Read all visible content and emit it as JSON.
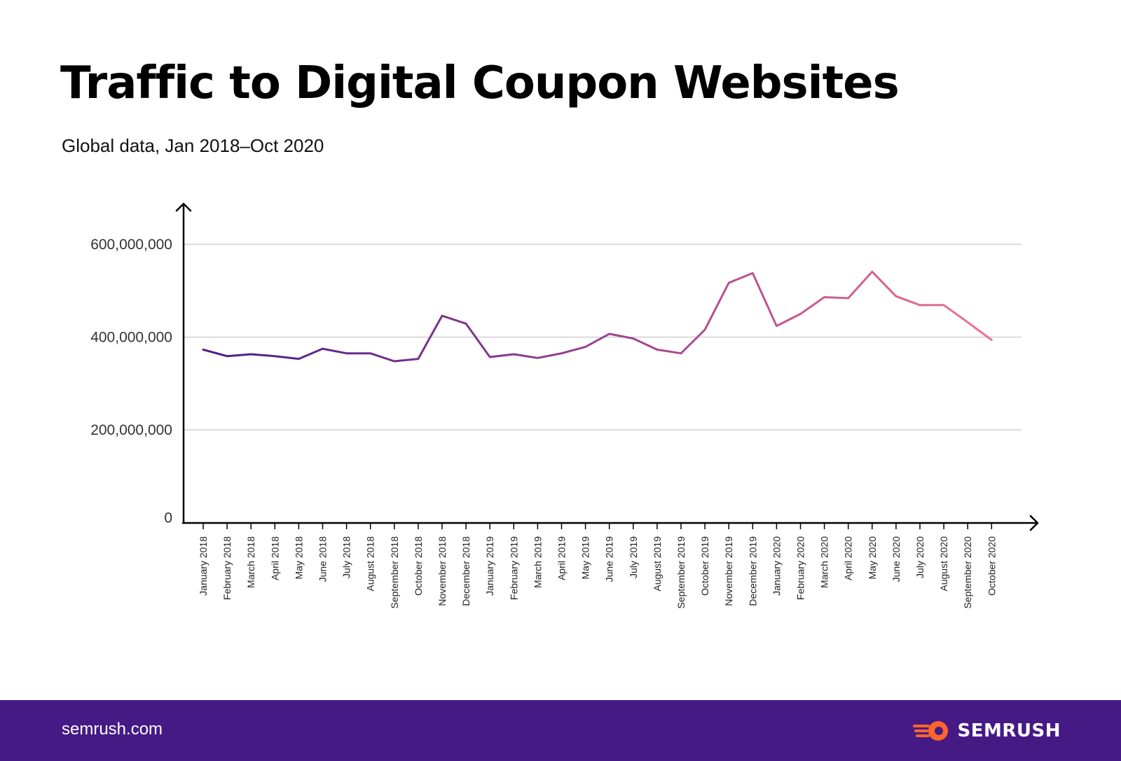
{
  "title": "Traffic to Digital Coupon Websites",
  "subtitle": "Global data, Jan 2018–Oct 2020",
  "footer": {
    "url": "semrush.com",
    "brand": "SEMRUSH"
  },
  "colors": {
    "line_start": "#4a1e87",
    "line_mid": "#a0468f",
    "line_end": "#ee7294",
    "footer_bg": "#451a85",
    "grid": "#c8c8c8",
    "logo": "#ff642d"
  },
  "icons": {
    "logo": "semrush-flame-logo-icon"
  },
  "chart_data": {
    "type": "line",
    "x": [
      "January 2018",
      "February 2018",
      "March 2018",
      "April 2018",
      "May 2018",
      "June 2018",
      "July 2018",
      "August 2018",
      "September 2018",
      "October 2018",
      "November 2018",
      "December 2018",
      "January 2019",
      "February 2019",
      "March 2019",
      "April 2019",
      "May 2019",
      "June 2019",
      "July 2019",
      "August 2019",
      "September 2019",
      "October 2019",
      "November 2019",
      "December 2019",
      "January 2020",
      "February 2020",
      "March 2020",
      "April 2020",
      "May 2020",
      "June 2020",
      "July 2020",
      "August 2020",
      "September 2020",
      "October 2020"
    ],
    "series": [
      {
        "values": [
          373000000,
          359000000,
          363000000,
          359000000,
          353000000,
          375000000,
          365000000,
          365000000,
          348000000,
          353000000,
          446000000,
          429000000,
          357000000,
          363000000,
          355000000,
          365000000,
          379000000,
          407000000,
          397000000,
          373000000,
          365000000,
          416000000,
          517000000,
          538000000,
          424000000,
          450000000,
          486000000,
          484000000,
          541000000,
          488000000,
          469000000,
          469000000,
          432000000,
          394000000
        ]
      }
    ],
    "yticks": [
      "0",
      "200,000,000",
      "400,000,000",
      "600,000,000"
    ],
    "ytick_values": [
      0,
      200000000,
      400000000,
      600000000
    ],
    "ylim": [
      0,
      600000000
    ],
    "grid": true,
    "xlabel": "",
    "ylabel": ""
  }
}
